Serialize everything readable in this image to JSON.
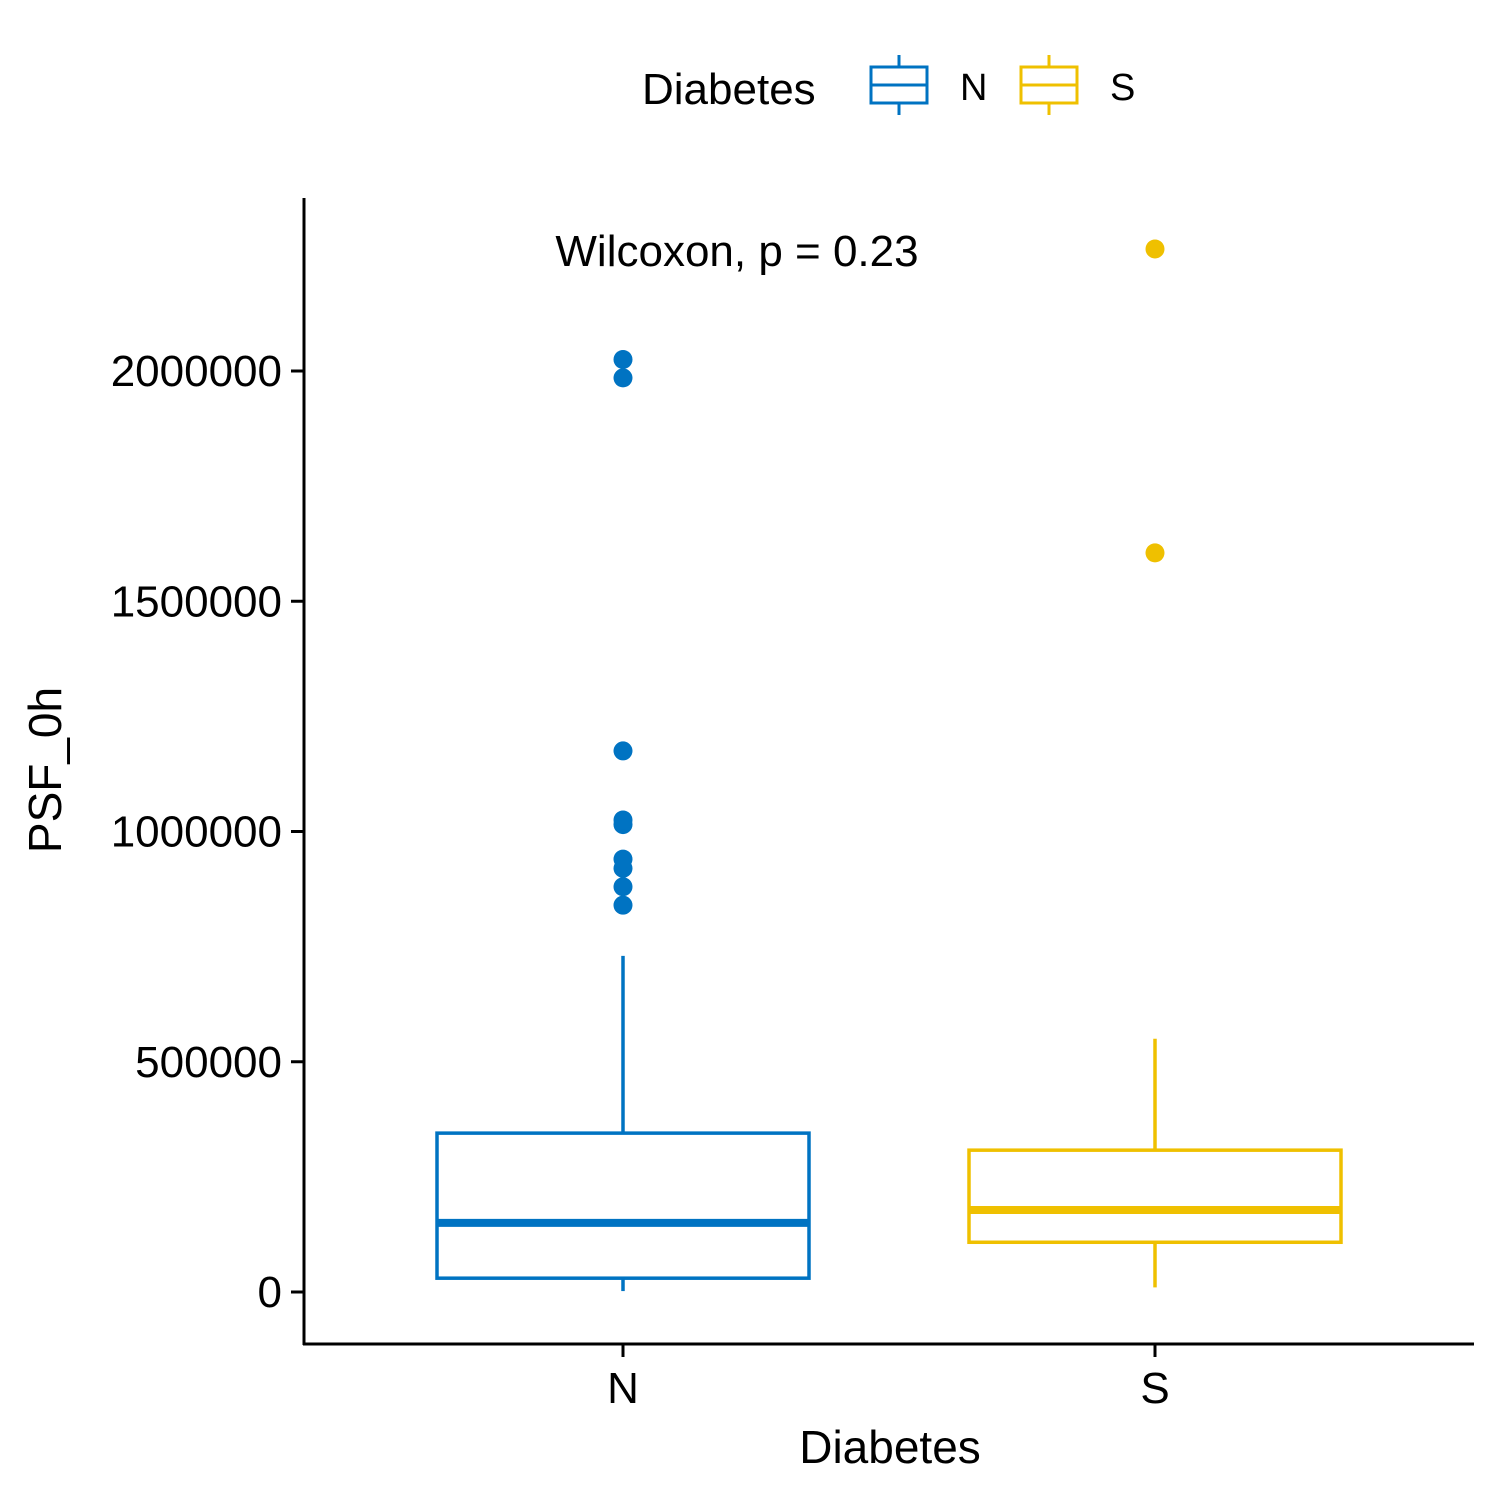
{
  "chart_data": {
    "type": "box",
    "xlabel": "Diabetes",
    "ylabel": "PSF_0h",
    "categories": [
      "N",
      "S"
    ],
    "ylim": [
      -110000,
      2370000
    ],
    "yticks": [
      0,
      500000,
      1000000,
      1500000,
      2000000
    ],
    "ytick_labels": [
      "0",
      "500000",
      "1000000",
      "1500000",
      "2000000"
    ],
    "legend": {
      "title": "Diabetes",
      "position": "top",
      "entries": [
        {
          "label": "N",
          "color": "#0073C2"
        },
        {
          "label": "S",
          "color": "#EFC000"
        }
      ]
    },
    "annotation": "Wilcoxon, p = 0.23",
    "series": [
      {
        "category": "N",
        "color": "#0073C2",
        "whisker_low": 2000,
        "q1": 30000,
        "median": 150000,
        "q3": 345000,
        "whisker_high": 730000,
        "outliers": [
          840000,
          880000,
          920000,
          940000,
          1015000,
          1025000,
          1175000,
          1985000,
          2025000
        ]
      },
      {
        "category": "S",
        "color": "#EFC000",
        "whisker_low": 10000,
        "q1": 108000,
        "median": 178000,
        "q3": 308000,
        "whisker_high": 550000,
        "outliers": [
          1605000,
          2265000
        ]
      }
    ]
  }
}
